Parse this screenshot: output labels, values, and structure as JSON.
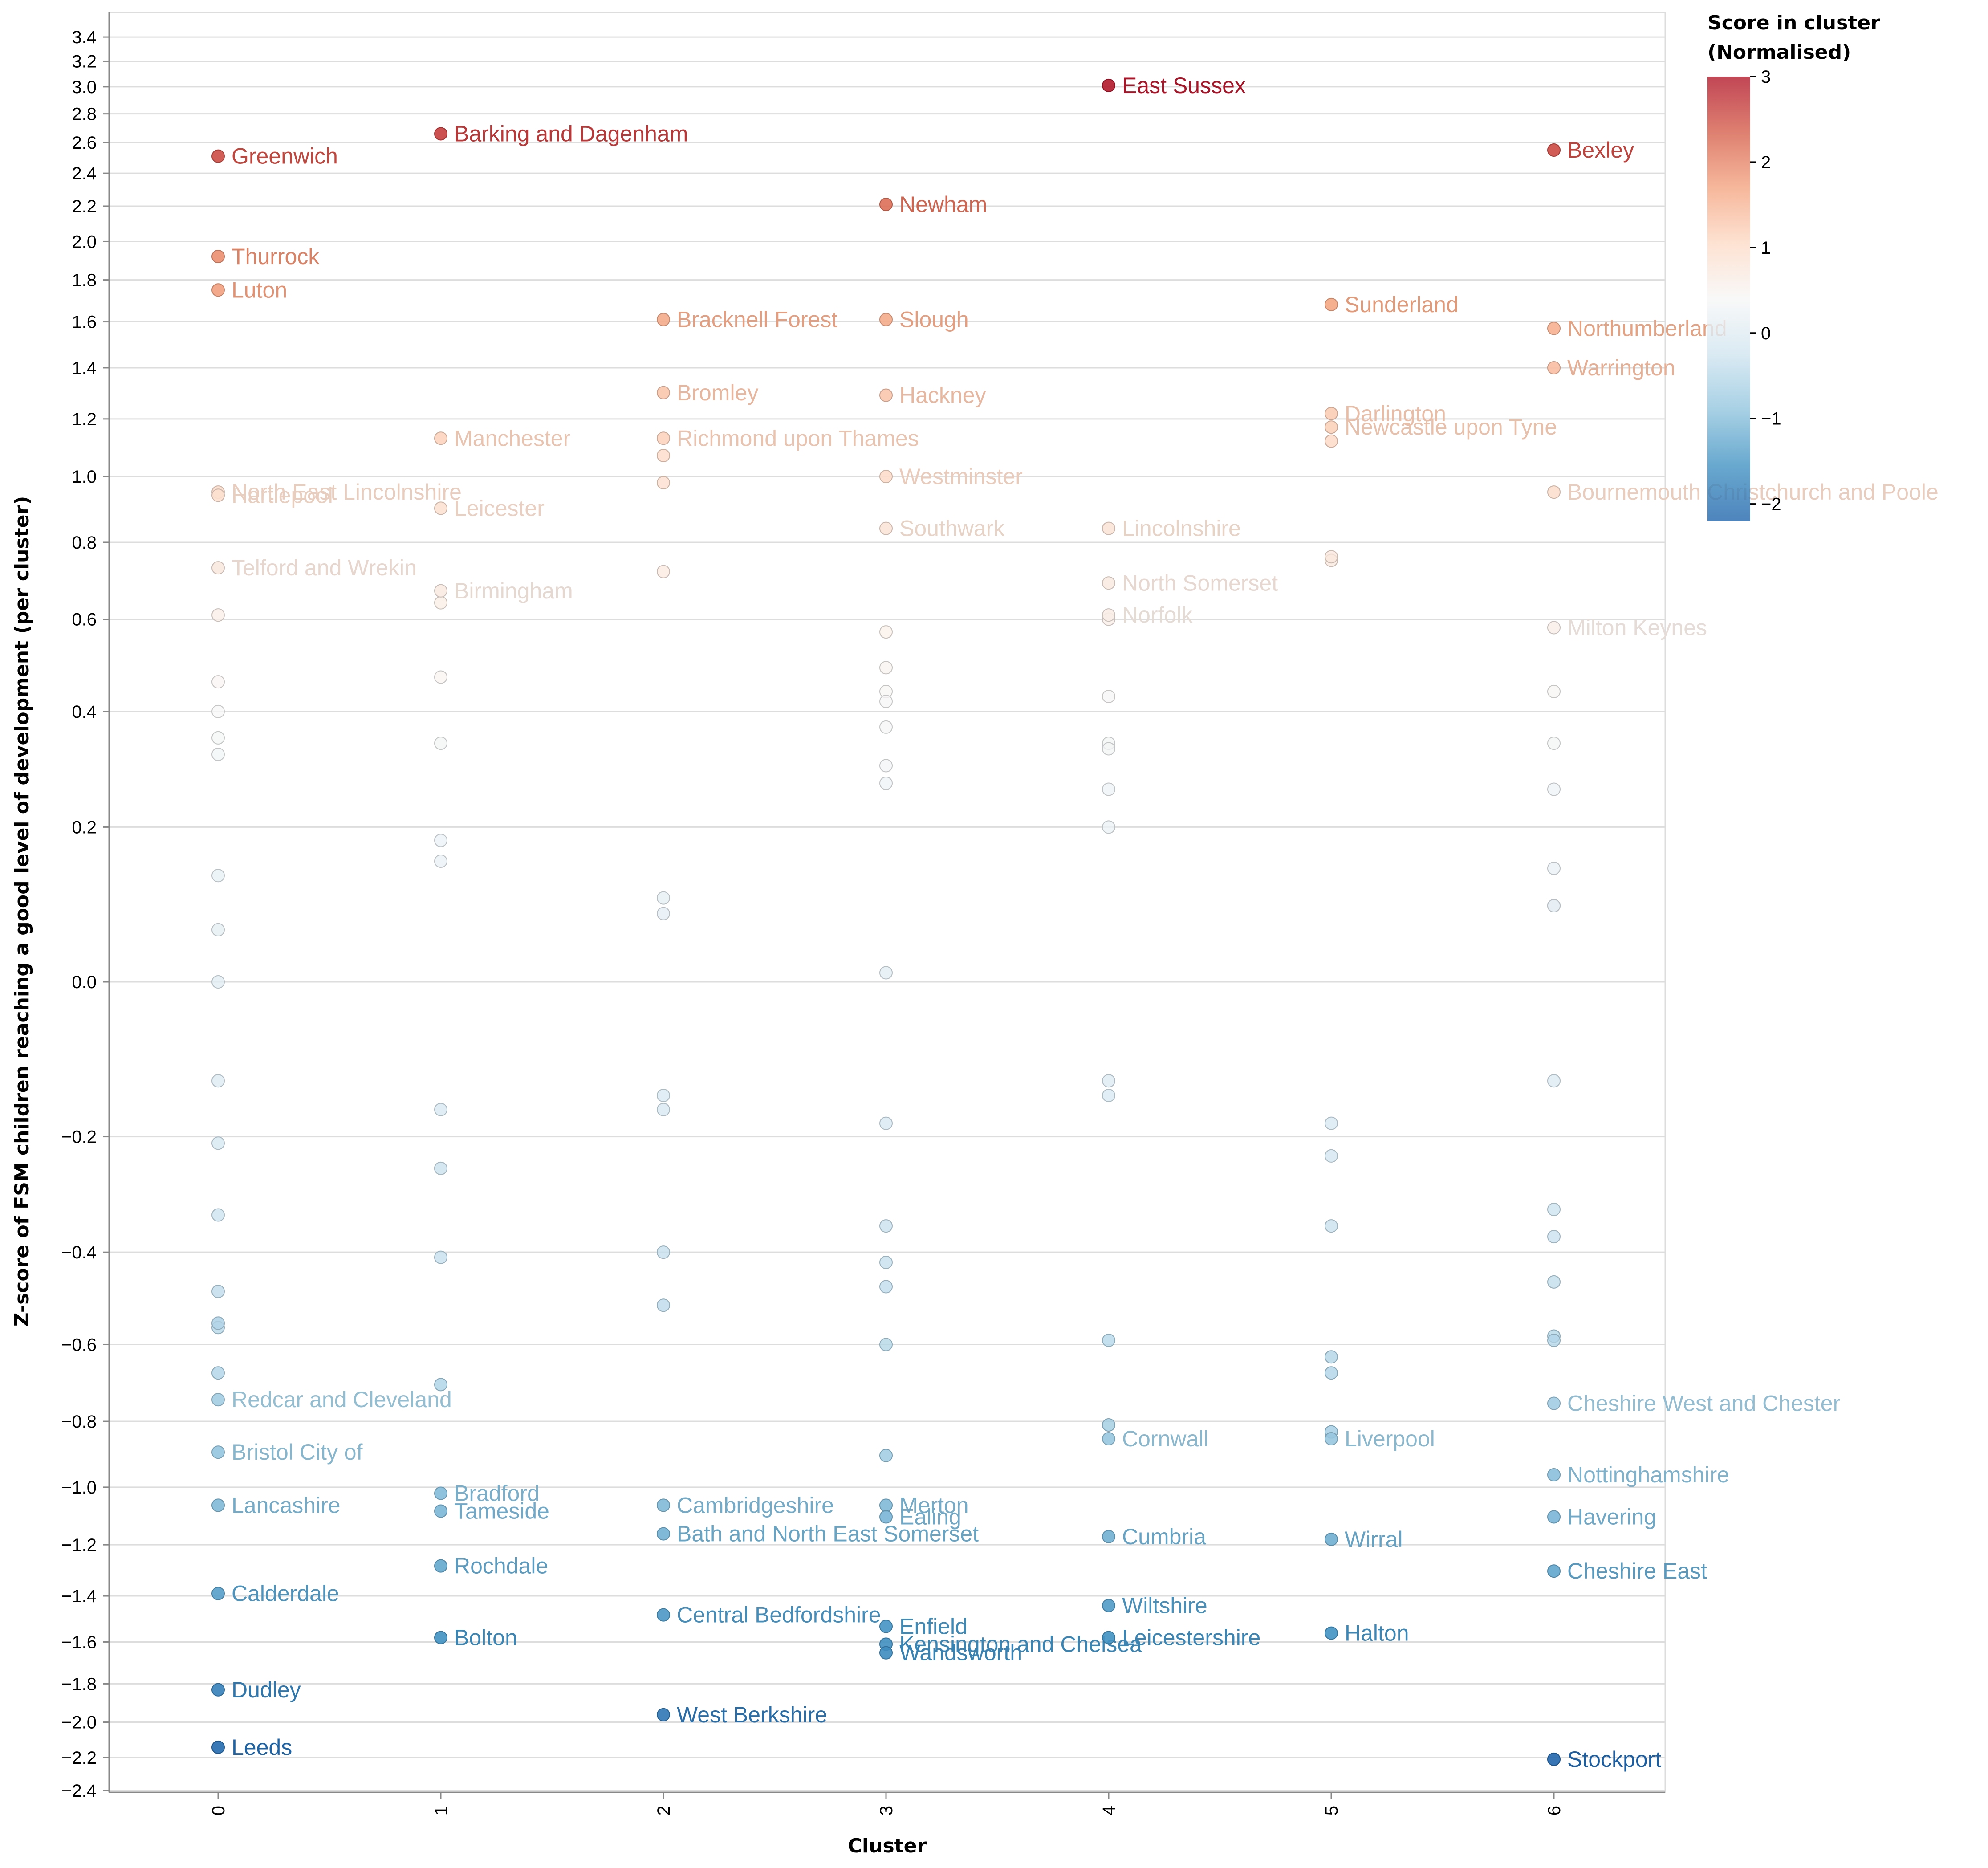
{
  "chart_data": {
    "type": "scatter",
    "xlabel": "Cluster",
    "ylabel": "Z-score of FSM children reaching a good level of development (per cluster)",
    "x_categories": [
      "0",
      "1",
      "2",
      "3",
      "4",
      "5",
      "6"
    ],
    "y_ticks": [
      "3.4",
      "3.2",
      "3.0",
      "2.8",
      "2.6",
      "2.4",
      "2.2",
      "2.0",
      "1.8",
      "1.6",
      "1.4",
      "1.2",
      "1.0",
      "0.8",
      "0.6",
      "0.4",
      "0.2",
      "0.0",
      "−0.2",
      "−0.4",
      "−0.6",
      "−0.8",
      "−1.0",
      "−1.2",
      "−1.4",
      "−1.6",
      "−1.8",
      "−2.0",
      "−2.2",
      "−2.4"
    ],
    "y_tick_values": [
      3.4,
      3.2,
      3.0,
      2.8,
      2.6,
      2.4,
      2.2,
      2.0,
      1.8,
      1.6,
      1.4,
      1.2,
      1.0,
      0.8,
      0.6,
      0.4,
      0.2,
      0.0,
      -0.2,
      -0.4,
      -0.6,
      -0.8,
      -1.0,
      -1.2,
      -1.4,
      -1.6,
      -1.8,
      -2.0,
      -2.2,
      -2.4
    ],
    "y_scale": "symlog",
    "ylim": [
      -2.5,
      3.5
    ],
    "grid": true,
    "legend": {
      "title_lines": [
        "Score in cluster",
        "(Normalised)"
      ],
      "ticks": [
        "3",
        "2",
        "1",
        "0",
        "−1",
        "−2"
      ],
      "tick_values": [
        3,
        2,
        1,
        0,
        -1,
        -2
      ],
      "domain": [
        -2.2,
        3.0
      ],
      "placement": "top-right"
    },
    "color_stops": [
      "#2166ac",
      "#4393c3",
      "#92c5de",
      "#d1e5f0",
      "#f7f7f7",
      "#fddbc7",
      "#f4a582",
      "#d6604d",
      "#b2182b"
    ],
    "labeled_points": [
      {
        "cluster": 0,
        "y": 2.51,
        "name": "Greenwich"
      },
      {
        "cluster": 0,
        "y": 1.92,
        "name": "Thurrock"
      },
      {
        "cluster": 0,
        "y": 1.75,
        "name": "Luton"
      },
      {
        "cluster": 0,
        "y": 0.95,
        "name": "North East Lincolnshire"
      },
      {
        "cluster": 0,
        "y": 0.94,
        "name": "Hartlepool"
      },
      {
        "cluster": 0,
        "y": 0.73,
        "name": "Telford and Wrekin"
      },
      {
        "cluster": 0,
        "y": -0.74,
        "name": "Redcar and Cleveland"
      },
      {
        "cluster": 0,
        "y": -0.89,
        "name": "Bristol City of"
      },
      {
        "cluster": 0,
        "y": -1.06,
        "name": "Lancashire"
      },
      {
        "cluster": 0,
        "y": -1.39,
        "name": "Calderdale"
      },
      {
        "cluster": 0,
        "y": -1.83,
        "name": "Dudley"
      },
      {
        "cluster": 0,
        "y": -2.14,
        "name": "Leeds"
      },
      {
        "cluster": 1,
        "y": 2.66,
        "name": "Barking and Dagenham"
      },
      {
        "cluster": 1,
        "y": 1.13,
        "name": "Manchester"
      },
      {
        "cluster": 1,
        "y": 0.9,
        "name": "Leicester"
      },
      {
        "cluster": 1,
        "y": 0.67,
        "name": "Birmingham"
      },
      {
        "cluster": 1,
        "y": -1.02,
        "name": "Bradford"
      },
      {
        "cluster": 1,
        "y": -1.08,
        "name": "Tameside"
      },
      {
        "cluster": 1,
        "y": -1.28,
        "name": "Rochdale"
      },
      {
        "cluster": 1,
        "y": -1.58,
        "name": "Bolton"
      },
      {
        "cluster": 2,
        "y": 1.61,
        "name": "Bracknell Forest"
      },
      {
        "cluster": 2,
        "y": 1.3,
        "name": "Bromley"
      },
      {
        "cluster": 2,
        "y": 1.13,
        "name": "Richmond upon Thames"
      },
      {
        "cluster": 2,
        "y": -1.06,
        "name": "Cambridgeshire"
      },
      {
        "cluster": 2,
        "y": -1.16,
        "name": "Bath and North East Somerset"
      },
      {
        "cluster": 2,
        "y": -1.48,
        "name": "Central Bedfordshire"
      },
      {
        "cluster": 2,
        "y": -1.96,
        "name": "West Berkshire"
      },
      {
        "cluster": 3,
        "y": 2.21,
        "name": "Newham"
      },
      {
        "cluster": 3,
        "y": 1.61,
        "name": "Slough"
      },
      {
        "cluster": 3,
        "y": 1.29,
        "name": "Hackney"
      },
      {
        "cluster": 3,
        "y": 1.0,
        "name": "Westminster"
      },
      {
        "cluster": 3,
        "y": 0.84,
        "name": "Southwark"
      },
      {
        "cluster": 3,
        "y": -1.06,
        "name": "Merton"
      },
      {
        "cluster": 3,
        "y": -1.1,
        "name": "Ealing"
      },
      {
        "cluster": 3,
        "y": -1.53,
        "name": "Enfield"
      },
      {
        "cluster": 3,
        "y": -1.61,
        "name": "Kensington and Chelsea"
      },
      {
        "cluster": 3,
        "y": -1.65,
        "name": "Wandsworth"
      },
      {
        "cluster": 4,
        "y": 3.01,
        "name": "East Sussex"
      },
      {
        "cluster": 4,
        "y": 0.84,
        "name": "Lincolnshire"
      },
      {
        "cluster": 4,
        "y": 0.69,
        "name": "North Somerset"
      },
      {
        "cluster": 4,
        "y": 0.61,
        "name": "Norfolk"
      },
      {
        "cluster": 4,
        "y": -0.85,
        "name": "Cornwall"
      },
      {
        "cluster": 4,
        "y": -1.17,
        "name": "Cumbria"
      },
      {
        "cluster": 4,
        "y": -1.44,
        "name": "Wiltshire"
      },
      {
        "cluster": 4,
        "y": -1.58,
        "name": "Leicestershire"
      },
      {
        "cluster": 5,
        "y": 1.68,
        "name": "Sunderland"
      },
      {
        "cluster": 5,
        "y": 1.22,
        "name": "Darlington"
      },
      {
        "cluster": 5,
        "y": 1.17,
        "name": "Newcastle upon Tyne"
      },
      {
        "cluster": 5,
        "y": -0.85,
        "name": "Liverpool"
      },
      {
        "cluster": 5,
        "y": -1.18,
        "name": "Wirral"
      },
      {
        "cluster": 5,
        "y": -1.56,
        "name": "Halton"
      },
      {
        "cluster": 6,
        "y": 2.55,
        "name": "Bexley"
      },
      {
        "cluster": 6,
        "y": 1.57,
        "name": "Northumberland"
      },
      {
        "cluster": 6,
        "y": 1.4,
        "name": "Warrington"
      },
      {
        "cluster": 6,
        "y": 0.95,
        "name": "Bournemouth Christchurch and Poole"
      },
      {
        "cluster": 6,
        "y": 0.58,
        "name": "Milton Keynes"
      },
      {
        "cluster": 6,
        "y": -0.75,
        "name": "Cheshire West and Chester"
      },
      {
        "cluster": 6,
        "y": -0.96,
        "name": "Nottinghamshire"
      },
      {
        "cluster": 6,
        "y": -1.1,
        "name": "Havering"
      },
      {
        "cluster": 6,
        "y": -1.3,
        "name": "Cheshire East"
      },
      {
        "cluster": 6,
        "y": -2.21,
        "name": "Stockport"
      }
    ],
    "unlabeled_points": [
      {
        "cluster": 0,
        "values": [
          0.61,
          0.46,
          0.4,
          0.35,
          0.32,
          0.13,
          0.06,
          0.0,
          -0.12,
          -0.21,
          -0.33,
          -0.48,
          -0.55,
          -0.56,
          -0.55,
          -0.67
        ]
      },
      {
        "cluster": 1,
        "values": [
          0.64,
          0.47,
          0.34,
          0.18,
          0.15,
          -0.16,
          -0.25,
          -0.25,
          -0.41,
          -0.7
        ]
      },
      {
        "cluster": 2,
        "values": [
          1.07,
          0.98,
          0.72,
          0.1,
          0.08,
          -0.14,
          -0.16,
          -0.4,
          -0.51
        ]
      },
      {
        "cluster": 3,
        "values": [
          0.57,
          0.49,
          0.44,
          0.42,
          0.37,
          0.3,
          0.27,
          0.01,
          -0.18,
          -0.35,
          -0.42,
          -0.47,
          -0.6,
          -0.9
        ]
      },
      {
        "cluster": 4,
        "values": [
          0.6,
          0.43,
          0.34,
          0.33,
          0.26,
          0.2,
          -0.12,
          -0.14,
          -0.59,
          -0.81
        ]
      },
      {
        "cluster": 5,
        "values": [
          0.75,
          0.76,
          1.12,
          -0.18,
          -0.23,
          -0.35,
          -0.63,
          -0.67,
          -0.83
        ]
      },
      {
        "cluster": 6,
        "values": [
          0.44,
          0.34,
          0.26,
          0.14,
          0.09,
          0.09,
          -0.12,
          -0.32,
          -0.37,
          -0.46,
          -0.58,
          -0.59
        ]
      }
    ]
  }
}
